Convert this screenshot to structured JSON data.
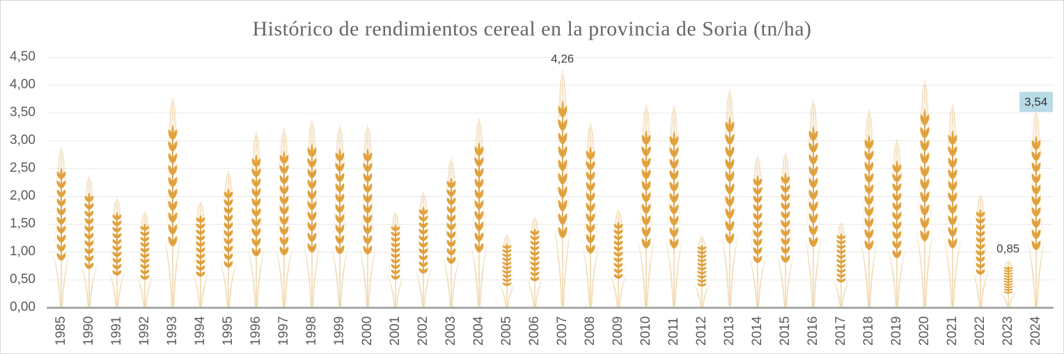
{
  "chart_data": {
    "type": "bar",
    "title": "Histórico de rendimientos cereal en la provincia de Soria (tn/ha)",
    "xlabel": "",
    "ylabel": "",
    "ylim": [
      0,
      4.5
    ],
    "ytick_step": 0.5,
    "ytick_labels": [
      "0,00",
      "0,50",
      "1,00",
      "1,50",
      "2,00",
      "2,50",
      "3,00",
      "3,50",
      "4,00",
      "4,50"
    ],
    "grid": true,
    "legend": "none",
    "bar_style": "wheat-ear-pictogram-stretched",
    "decimal_separator": ",",
    "categories": [
      "1985",
      "1990",
      "1991",
      "1992",
      "1993",
      "1994",
      "1995",
      "1996",
      "1997",
      "1998",
      "1999",
      "2000",
      "2001",
      "2002",
      "2003",
      "2004",
      "2005",
      "2006",
      "2007",
      "2008",
      "2009",
      "2010",
      "2011",
      "2012",
      "2013",
      "2014",
      "2015",
      "2016",
      "2017",
      "2018",
      "2019",
      "2020",
      "2021",
      "2022",
      "2023",
      "2024"
    ],
    "values": [
      2.87,
      2.36,
      1.96,
      1.73,
      3.76,
      1.9,
      2.45,
      3.15,
      3.23,
      3.37,
      3.27,
      3.28,
      1.71,
      2.07,
      2.67,
      3.4,
      1.31,
      1.63,
      4.26,
      3.31,
      1.76,
      3.65,
      3.62,
      1.29,
      3.92,
      2.72,
      2.78,
      3.74,
      1.52,
      3.55,
      3.02,
      4.09,
      3.65,
      2.03,
      0.85,
      3.54
    ],
    "annotations": [
      {
        "category": "2007",
        "label": "4,26",
        "highlighted": false
      },
      {
        "category": "2023",
        "label": "0,85",
        "highlighted": false
      },
      {
        "category": "2024",
        "label": "3,54",
        "highlighted": true
      }
    ],
    "colors": {
      "wheat_main": "#e2a23c",
      "wheat_dark": "#ce8e2d",
      "wheat_awn": "#eac78f",
      "wheat_pale": "#f1dcb4",
      "wheat_envelope": "#f4e6cc",
      "gridline": "#e9e9e9",
      "axis_line": "#a9a9a9",
      "tick_text": "#595959",
      "title_text": "#666666",
      "label_text": "#404040",
      "highlight_box_bg": "#b9dbe6",
      "background": "#ffffff"
    }
  }
}
